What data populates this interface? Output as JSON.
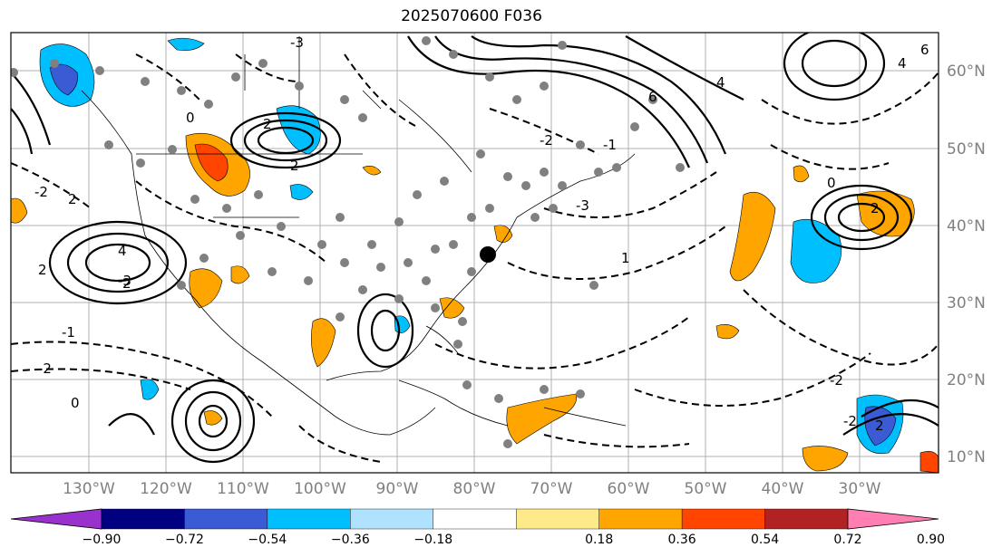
{
  "title": "2025070600 F036",
  "lat_labels": [
    "60°N",
    "50°N",
    "40°N",
    "30°N",
    "20°N",
    "10°N"
  ],
  "lon_labels": [
    "130°W",
    "120°W",
    "110°W",
    "100°W",
    "90°W",
    "80°W",
    "70°W",
    "60°W",
    "50°W",
    "40°W",
    "30°W"
  ],
  "colorbar": {
    "ticks": [
      "−0.90",
      "−0.72",
      "−0.54",
      "−0.36",
      "−0.18",
      "0.18",
      "0.36",
      "0.54",
      "0.72",
      "0.90"
    ],
    "colors": [
      "#9932cc",
      "#000080",
      "#3a5bd4",
      "#00bfff",
      "#aee2ff",
      "#ffffff",
      "#ffea8a",
      "#ffa500",
      "#ff4500",
      "#b22222",
      "#ff7fb2"
    ]
  },
  "contour_labels": [
    "-3",
    "2",
    "4",
    "0",
    "-2",
    "-1",
    "1",
    "6",
    "2",
    "-2",
    "0",
    "4",
    "-3",
    "2",
    "0",
    "-2",
    "2",
    "-1",
    "2",
    "-2",
    "-3",
    "2",
    "2",
    "6",
    "4",
    "-2"
  ]
}
